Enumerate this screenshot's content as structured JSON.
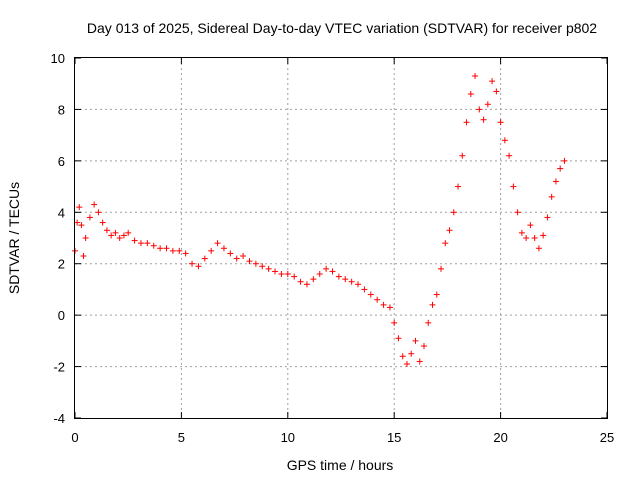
{
  "chart_data": {
    "type": "scatter",
    "title": "Day 013 of 2025, Sidereal Day-to-day VTEC variation (SDTVAR) for receiver p802",
    "xlabel": "GPS time / hours",
    "ylabel": "SDTVAR / TECUs",
    "xlim": [
      0,
      25
    ],
    "ylim": [
      -4,
      10
    ],
    "x_ticks": [
      0,
      5,
      10,
      15,
      20,
      25
    ],
    "y_ticks": [
      -4,
      -2,
      0,
      2,
      4,
      6,
      8,
      10
    ],
    "x_tick_labels": [
      "0",
      "5",
      "10",
      "15",
      "20",
      "25"
    ],
    "y_tick_labels": [
      "-4",
      "-2",
      "0",
      "2",
      "4",
      "6",
      "8",
      "10"
    ],
    "grid": true,
    "marker": "+",
    "series": [
      {
        "name": "SDTVAR",
        "color": "#ff0000",
        "x": [
          0.0,
          0.1,
          0.2,
          0.3,
          0.4,
          0.5,
          0.7,
          0.9,
          1.1,
          1.3,
          1.5,
          1.7,
          1.9,
          2.1,
          2.3,
          2.5,
          2.8,
          3.1,
          3.4,
          3.7,
          4.0,
          4.3,
          4.6,
          4.9,
          5.2,
          5.5,
          5.8,
          6.1,
          6.4,
          6.7,
          7.0,
          7.3,
          7.6,
          7.9,
          8.2,
          8.5,
          8.8,
          9.1,
          9.4,
          9.7,
          10.0,
          10.3,
          10.6,
          10.9,
          11.2,
          11.5,
          11.8,
          12.1,
          12.4,
          12.7,
          13.0,
          13.3,
          13.6,
          13.9,
          14.2,
          14.5,
          14.8,
          15.0,
          15.2,
          15.4,
          15.6,
          15.8,
          16.0,
          16.2,
          16.4,
          16.6,
          16.8,
          17.0,
          17.2,
          17.4,
          17.6,
          17.8,
          18.0,
          18.2,
          18.4,
          18.6,
          18.8,
          19.0,
          19.2,
          19.4,
          19.6,
          19.8,
          20.0,
          20.2,
          20.4,
          20.6,
          20.8,
          21.0,
          21.2,
          21.4,
          21.6,
          21.8,
          22.0,
          22.2,
          22.4,
          22.6,
          22.8,
          23.0
        ],
        "y": [
          2.5,
          3.6,
          4.2,
          3.5,
          2.3,
          3.0,
          3.8,
          4.3,
          4.0,
          3.6,
          3.3,
          3.1,
          3.2,
          3.0,
          3.1,
          3.2,
          2.9,
          2.8,
          2.8,
          2.7,
          2.6,
          2.6,
          2.5,
          2.5,
          2.4,
          2.0,
          1.9,
          2.2,
          2.5,
          2.8,
          2.6,
          2.4,
          2.2,
          2.3,
          2.1,
          2.0,
          1.9,
          1.8,
          1.7,
          1.6,
          1.6,
          1.5,
          1.3,
          1.2,
          1.4,
          1.6,
          1.8,
          1.7,
          1.5,
          1.4,
          1.3,
          1.2,
          1.0,
          0.8,
          0.6,
          0.4,
          0.3,
          -0.3,
          -0.9,
          -1.6,
          -1.9,
          -1.5,
          -1.0,
          -1.8,
          -1.2,
          -0.3,
          0.4,
          0.8,
          1.8,
          2.8,
          3.3,
          4.0,
          5.0,
          6.2,
          7.5,
          8.6,
          9.3,
          8.0,
          7.6,
          8.2,
          9.1,
          8.7,
          7.5,
          6.8,
          6.2,
          5.0,
          4.0,
          3.2,
          3.0,
          3.5,
          3.0,
          2.6,
          3.1,
          3.8,
          4.6,
          5.2,
          5.7,
          6.0
        ]
      }
    ],
    "annotations": []
  }
}
